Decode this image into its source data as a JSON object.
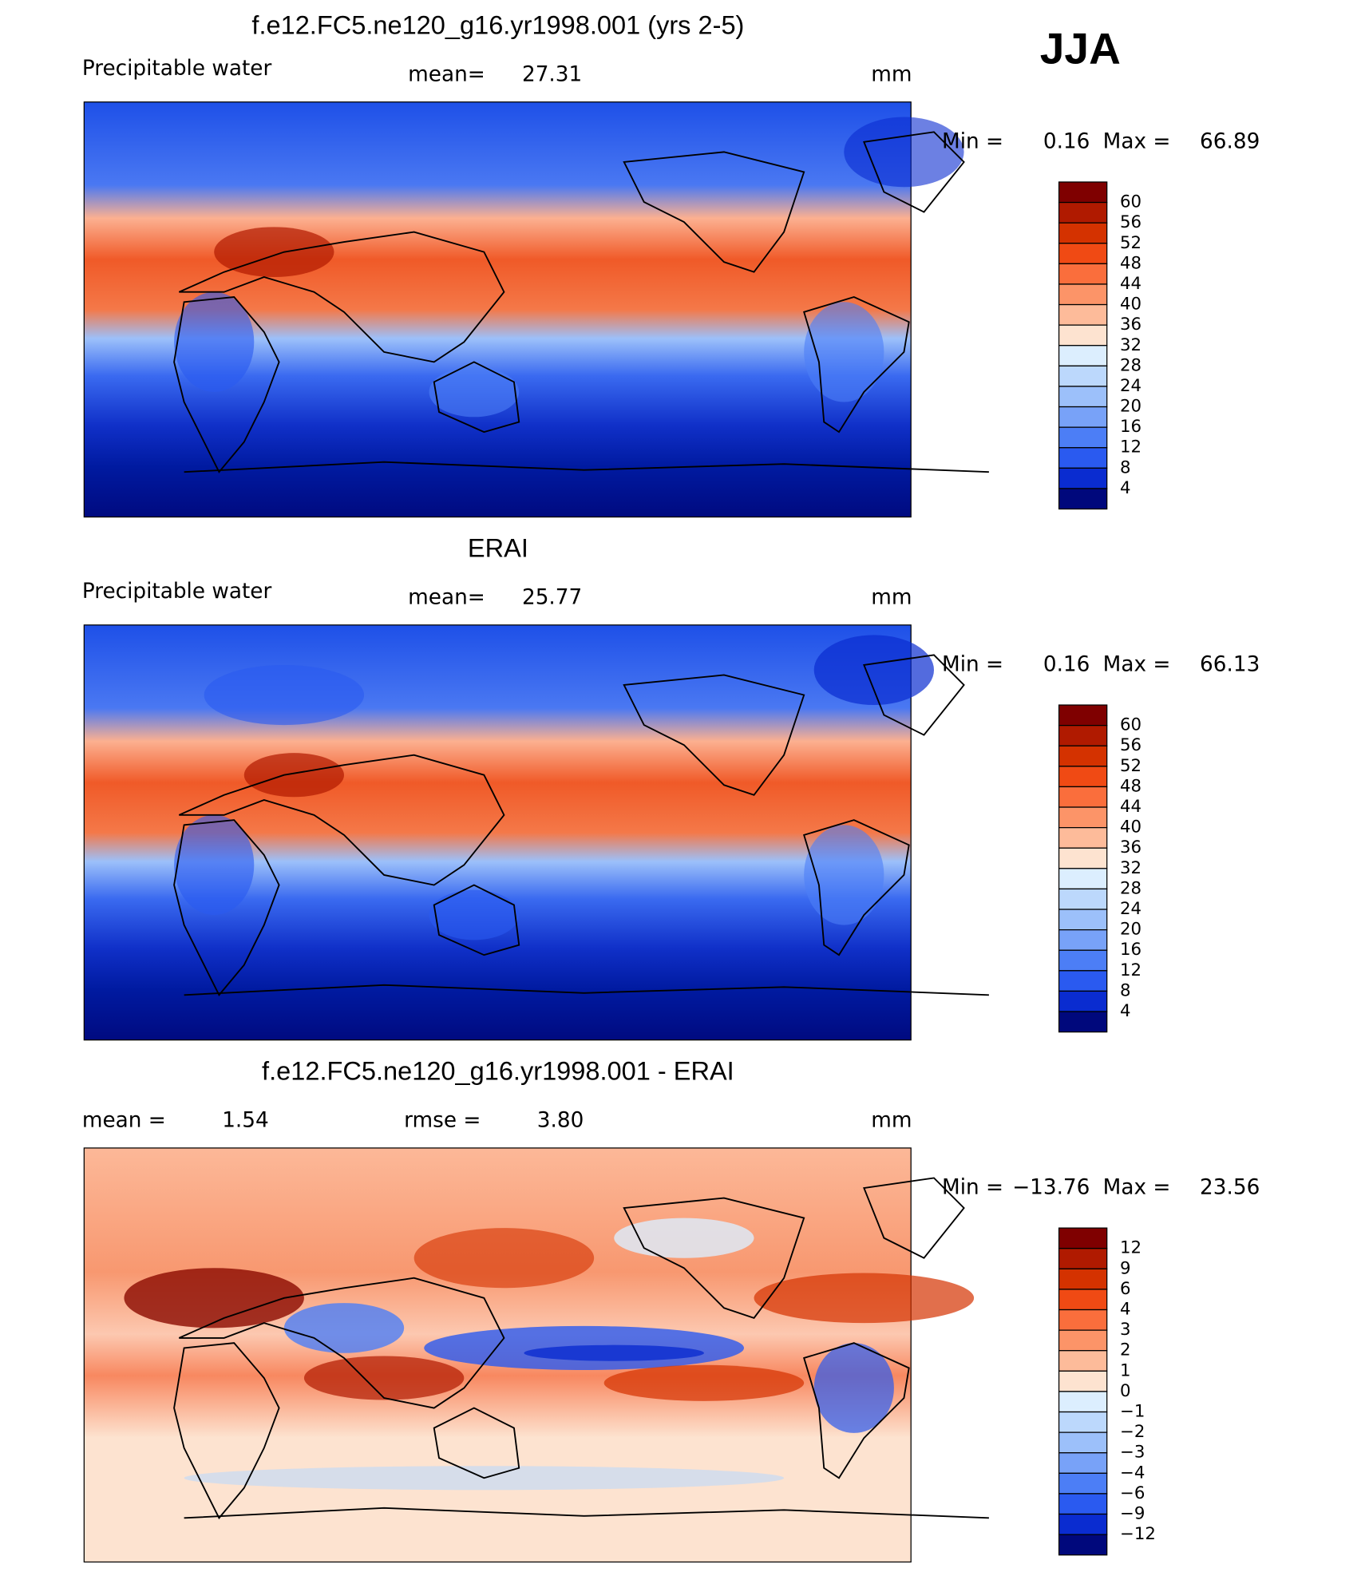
{
  "header": {
    "season": "JJA"
  },
  "panels": [
    {
      "title": "f.e12.FC5.ne120_g16.yr1998.001 (yrs 2-5)",
      "left_label": "Precipitable water",
      "stats": [
        {
          "label": "mean=",
          "value": "27.31"
        }
      ],
      "units": "mm",
      "min_label": "Min =",
      "min_value": "0.16",
      "max_label": "Max =",
      "max_value": "66.89",
      "colorbar": {
        "colors": [
          "#7f0000",
          "#b01a00",
          "#d43200",
          "#f04a14",
          "#fa6e3c",
          "#fc9468",
          "#fdbb9a",
          "#fde3d0",
          "#dceefe",
          "#bcd8fc",
          "#9cc0fa",
          "#78a2f8",
          "#4c7ef6",
          "#2a5af0",
          "#0a2cd0",
          "#00087c"
        ],
        "labels": [
          "60",
          "56",
          "52",
          "48",
          "44",
          "40",
          "36",
          "32",
          "28",
          "24",
          "20",
          "16",
          "12",
          "8",
          "4"
        ]
      }
    },
    {
      "title": "ERAI",
      "left_label": "Precipitable water",
      "stats": [
        {
          "label": "mean=",
          "value": "25.77"
        }
      ],
      "units": "mm",
      "min_label": "Min =",
      "min_value": "0.16",
      "max_label": "Max =",
      "max_value": "66.13",
      "colorbar": {
        "colors": [
          "#7f0000",
          "#b01a00",
          "#d43200",
          "#f04a14",
          "#fa6e3c",
          "#fc9468",
          "#fdbb9a",
          "#fde3d0",
          "#dceefe",
          "#bcd8fc",
          "#9cc0fa",
          "#78a2f8",
          "#4c7ef6",
          "#2a5af0",
          "#0a2cd0",
          "#00087c"
        ],
        "labels": [
          "60",
          "56",
          "52",
          "48",
          "44",
          "40",
          "36",
          "32",
          "28",
          "24",
          "20",
          "16",
          "12",
          "8",
          "4"
        ]
      }
    },
    {
      "title": "f.e12.FC5.ne120_g16.yr1998.001 - ERAI",
      "left_label": null,
      "stats": [
        {
          "label": "mean =",
          "value": "1.54"
        },
        {
          "label": "rmse =",
          "value": "3.80"
        }
      ],
      "units": "mm",
      "min_label": "Min =",
      "min_value": "−13.76",
      "max_label": "Max =",
      "max_value": "23.56",
      "colorbar": {
        "colors": [
          "#7f0000",
          "#b01a00",
          "#d43200",
          "#f04a14",
          "#fa6e3c",
          "#fc9468",
          "#fdbb9a",
          "#fde3d0",
          "#dceefe",
          "#bcd8fc",
          "#9cc0fa",
          "#78a2f8",
          "#4c7ef6",
          "#2a5af0",
          "#0a2cd0",
          "#00087c"
        ],
        "labels": [
          "12",
          "9",
          "6",
          "4",
          "3",
          "2",
          "1",
          "0",
          "−1",
          "−2",
          "−3",
          "−4",
          "−6",
          "−9",
          "−12"
        ]
      }
    }
  ]
}
